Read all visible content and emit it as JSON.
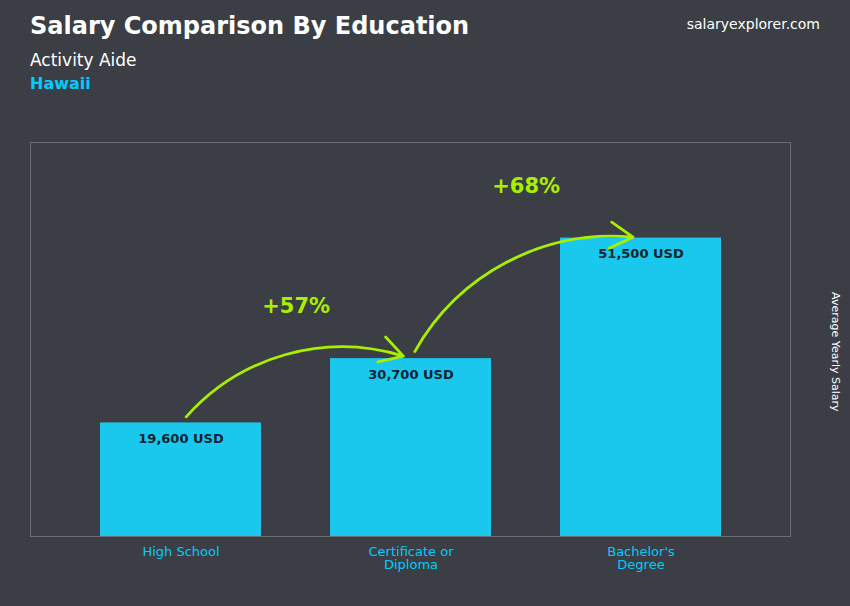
{
  "chart_data": {
    "type": "bar",
    "title": "Salary Comparison By Education",
    "subtitle": [
      "Activity Aide",
      "Hawaii"
    ],
    "ylabel": "Average Yearly Salary",
    "categories": [
      "High School",
      "Certificate or\nDiploma",
      "Bachelor's\nDegree"
    ],
    "values": [
      19600,
      30700,
      51500
    ],
    "value_labels": [
      "19,600 USD",
      "30,700 USD",
      "51,500 USD"
    ],
    "data_labels": true,
    "color": "#1ac8ed",
    "ylim": [
      0,
      68000
    ],
    "tick_labels": "x",
    "grid": false,
    "annotations": [
      {
        "text": "+57%",
        "from": "High School",
        "to": "Certificate or\nDiploma",
        "color": "#aaee00"
      },
      {
        "text": "+68%",
        "from": "Certificate or\nDiploma",
        "to": "Bachelor's\nDegree",
        "color": "#aaee00"
      },
      {
        "text": "salaryexplorer.com"
      }
    ]
  }
}
